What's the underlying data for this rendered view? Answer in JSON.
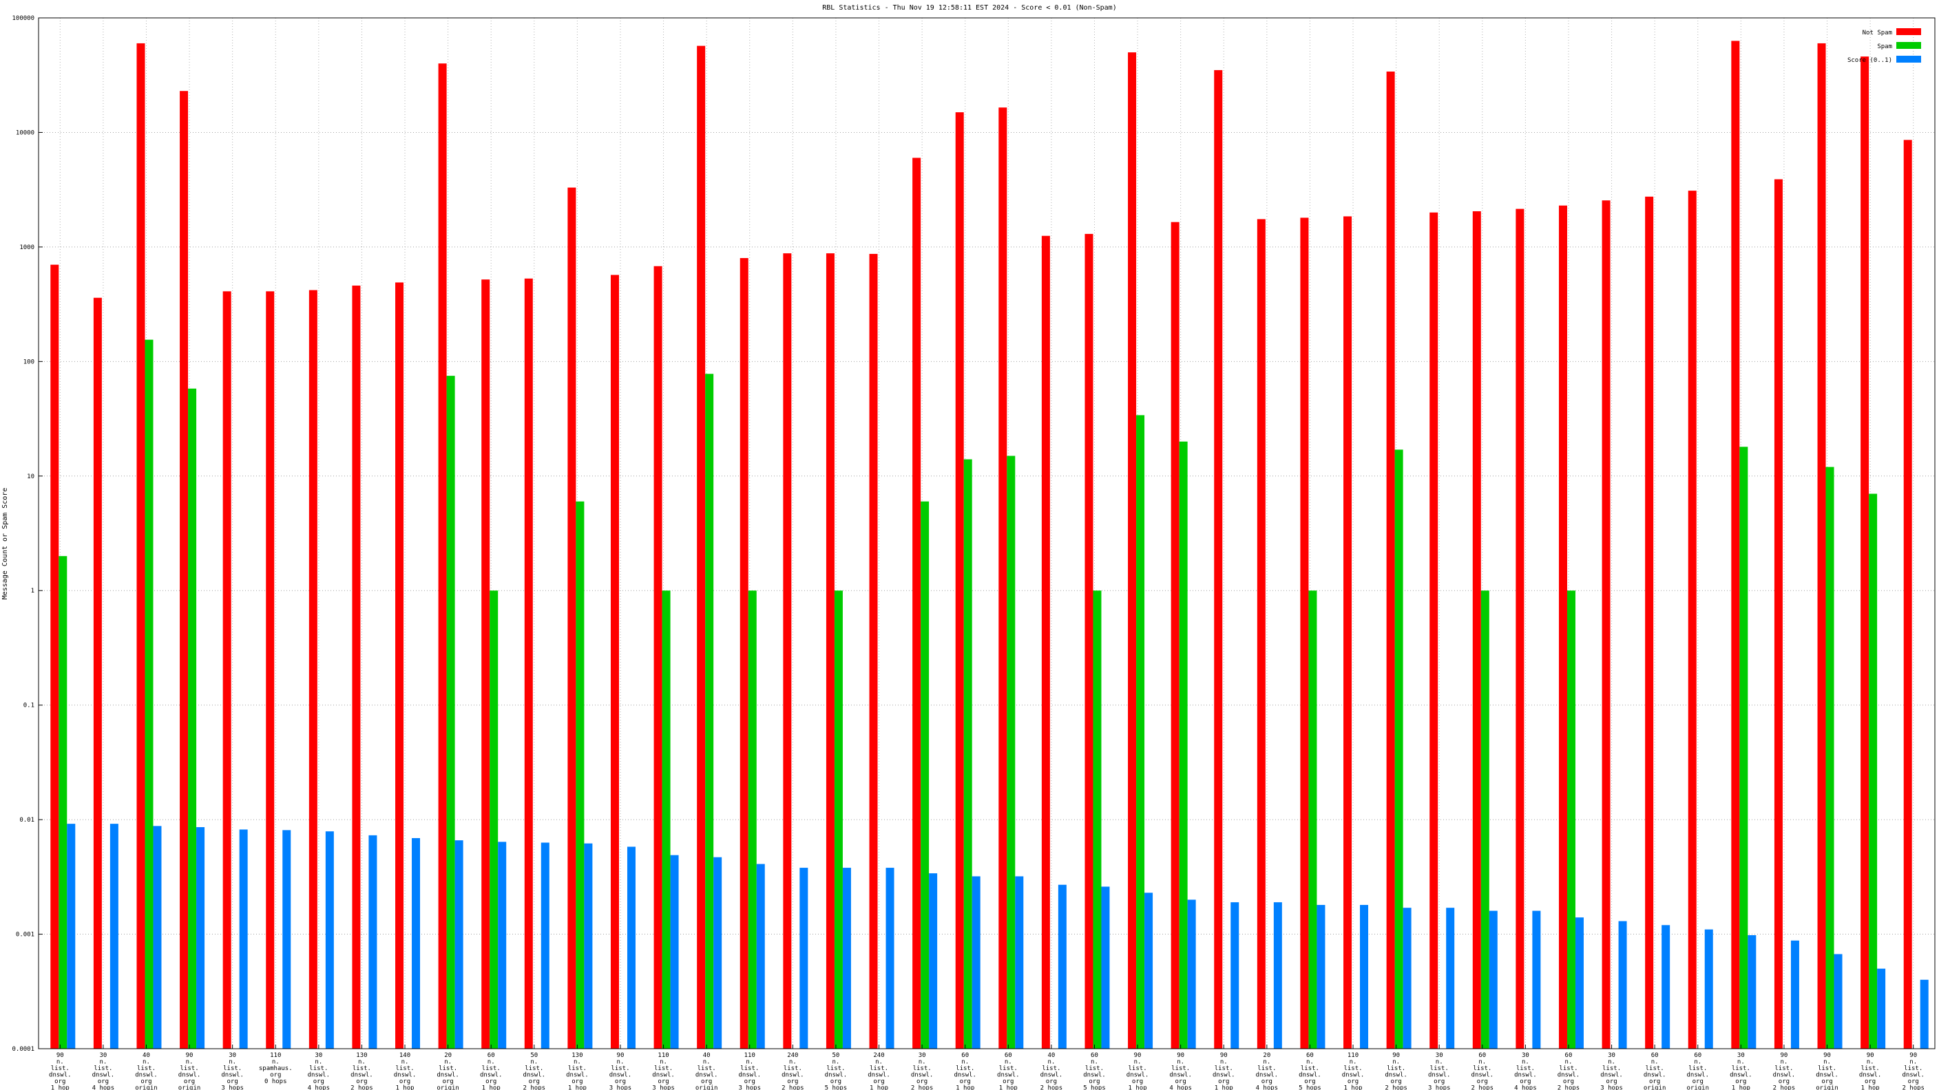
{
  "chart_data": {
    "type": "bar",
    "title": "RBL Statistics - Thu Nov 19 12:58:11 EST 2024 - Score < 0.01 (Non-Spam)",
    "xlabel": "",
    "ylabel": "Message Count or Spam Score",
    "yscale": "log",
    "ylim": [
      0.0001,
      100000
    ],
    "yticks": [
      "100000",
      "10000",
      "1000",
      "100",
      "10",
      "1",
      "0.1",
      "0.01",
      "0.001",
      "0.0001"
    ],
    "grid": true,
    "legend_position": "top-right",
    "categories": [
      [
        "90",
        "n.",
        "list.",
        "dnswl.",
        "org",
        "1 hop"
      ],
      [
        "30",
        "n.",
        "list.",
        "dnswl.",
        "org",
        "4 hops"
      ],
      [
        "40",
        "n.",
        "list.",
        "dnswl.",
        "org",
        "origin"
      ],
      [
        "90",
        "n.",
        "list.",
        "dnswl.",
        "org",
        "origin"
      ],
      [
        "30",
        "n.",
        "list.",
        "dnswl.",
        "org",
        "3 hops"
      ],
      [
        "110",
        "n.",
        "spamhaus.",
        "org",
        "0 hops"
      ],
      [
        "30",
        "n.",
        "list.",
        "dnswl.",
        "org",
        "4 hops"
      ],
      [
        "130",
        "n.",
        "list.",
        "dnswl.",
        "org",
        "2 hops"
      ],
      [
        "140",
        "n.",
        "list.",
        "dnswl.",
        "org",
        "1 hop"
      ],
      [
        "20",
        "n.",
        "list.",
        "dnswl.",
        "org",
        "origin"
      ],
      [
        "60",
        "n.",
        "list.",
        "dnswl.",
        "org",
        "1 hop"
      ],
      [
        "50",
        "n.",
        "list.",
        "dnswl.",
        "org",
        "2 hops"
      ],
      [
        "130",
        "n.",
        "list.",
        "dnswl.",
        "org",
        "1 hop"
      ],
      [
        "90",
        "n.",
        "list.",
        "dnswl.",
        "org",
        "3 hops"
      ],
      [
        "110",
        "n.",
        "list.",
        "dnswl.",
        "org",
        "3 hops"
      ],
      [
        "40",
        "n.",
        "list.",
        "dnswl.",
        "org",
        "origin"
      ],
      [
        "110",
        "n.",
        "list.",
        "dnswl.",
        "org",
        "3 hops"
      ],
      [
        "240",
        "n.",
        "list.",
        "dnswl.",
        "org",
        "2 hops"
      ],
      [
        "50",
        "n.",
        "list.",
        "dnswl.",
        "org",
        "5 hops"
      ],
      [
        "240",
        "n.",
        "list.",
        "dnswl.",
        "org",
        "1 hop"
      ],
      [
        "30",
        "n.",
        "list.",
        "dnswl.",
        "org",
        "2 hops"
      ],
      [
        "60",
        "n.",
        "list.",
        "dnswl.",
        "org",
        "1 hop"
      ],
      [
        "60",
        "n.",
        "list.",
        "dnswl.",
        "org",
        "1 hop"
      ],
      [
        "40",
        "n.",
        "list.",
        "dnswl.",
        "org",
        "2 hops"
      ],
      [
        "60",
        "n.",
        "list.",
        "dnswl.",
        "org",
        "5 hops"
      ],
      [
        "90",
        "n.",
        "list.",
        "dnswl.",
        "org",
        "1 hop"
      ],
      [
        "90",
        "n.",
        "list.",
        "dnswl.",
        "org",
        "4 hops"
      ],
      [
        "90",
        "n.",
        "list.",
        "dnswl.",
        "org",
        "1 hop"
      ],
      [
        "20",
        "n.",
        "list.",
        "dnswl.",
        "org",
        "4 hops"
      ],
      [
        "60",
        "n.",
        "list.",
        "dnswl.",
        "org",
        "5 hops"
      ],
      [
        "110",
        "n.",
        "list.",
        "dnswl.",
        "org",
        "1 hop"
      ],
      [
        "90",
        "n.",
        "list.",
        "dnswl.",
        "org",
        "2 hops"
      ],
      [
        "30",
        "n.",
        "list.",
        "dnswl.",
        "org",
        "3 hops"
      ],
      [
        "60",
        "n.",
        "list.",
        "dnswl.",
        "org",
        "2 hops"
      ],
      [
        "30",
        "n.",
        "list.",
        "dnswl.",
        "org",
        "4 hops"
      ],
      [
        "60",
        "n.",
        "list.",
        "dnswl.",
        "org",
        "2 hops"
      ],
      [
        "30",
        "n.",
        "list.",
        "dnswl.",
        "org",
        "3 hops"
      ],
      [
        "60",
        "n.",
        "list.",
        "dnswl.",
        "org",
        "origin"
      ],
      [
        "60",
        "n.",
        "list.",
        "dnswl.",
        "org",
        "origin"
      ],
      [
        "30",
        "n.",
        "list.",
        "dnswl.",
        "org",
        "1 hop"
      ],
      [
        "90",
        "n.",
        "list.",
        "dnswl.",
        "org",
        "2 hops"
      ],
      [
        "90",
        "n.",
        "list.",
        "dnswl.",
        "org",
        "origin"
      ],
      [
        "90",
        "n.",
        "list.",
        "dnswl.",
        "org",
        "1 hop"
      ],
      [
        "90",
        "n.",
        "list.",
        "dnswl.",
        "org",
        "2 hops"
      ]
    ],
    "series": [
      {
        "name": "Not Spam",
        "color": "#ff0000",
        "values": [
          700,
          360,
          60000,
          23000,
          410,
          410,
          420,
          460,
          490,
          40000,
          520,
          530,
          3300,
          570,
          680,
          57000,
          800,
          880,
          880,
          870,
          6000,
          15000,
          16500,
          1250,
          1300,
          50000,
          1650,
          35000,
          1750,
          1800,
          1850,
          34000,
          2000,
          2050,
          2150,
          2300,
          2550,
          2750,
          3100,
          63000,
          3900,
          60000,
          46000,
          8600
        ]
      },
      {
        "name": "Spam",
        "color": "#00cc00",
        "values": [
          2,
          null,
          155,
          58,
          null,
          null,
          null,
          null,
          null,
          75,
          1,
          null,
          6,
          null,
          1,
          78,
          1,
          null,
          1,
          null,
          6,
          14,
          15,
          null,
          1,
          34,
          20,
          null,
          null,
          1,
          null,
          17,
          null,
          1,
          null,
          1,
          null,
          null,
          null,
          18,
          null,
          12,
          7,
          null
        ]
      },
      {
        "name": "Score (0..1)",
        "color": "#0080ff",
        "values": [
          0.0092,
          0.0092,
          0.0088,
          0.0086,
          0.0082,
          0.0081,
          0.0079,
          0.0073,
          0.0069,
          0.0066,
          0.0064,
          0.0063,
          0.0062,
          0.0058,
          0.0049,
          0.0047,
          0.0041,
          0.0038,
          0.0038,
          0.0038,
          0.0034,
          0.0032,
          0.0032,
          0.0027,
          0.0026,
          0.0023,
          0.002,
          0.0019,
          0.0019,
          0.0018,
          0.0018,
          0.0017,
          0.0017,
          0.0016,
          0.0016,
          0.0014,
          0.0013,
          0.0012,
          0.0011,
          0.00098,
          0.00088,
          0.00067,
          0.0005,
          0.0004
        ]
      }
    ]
  }
}
